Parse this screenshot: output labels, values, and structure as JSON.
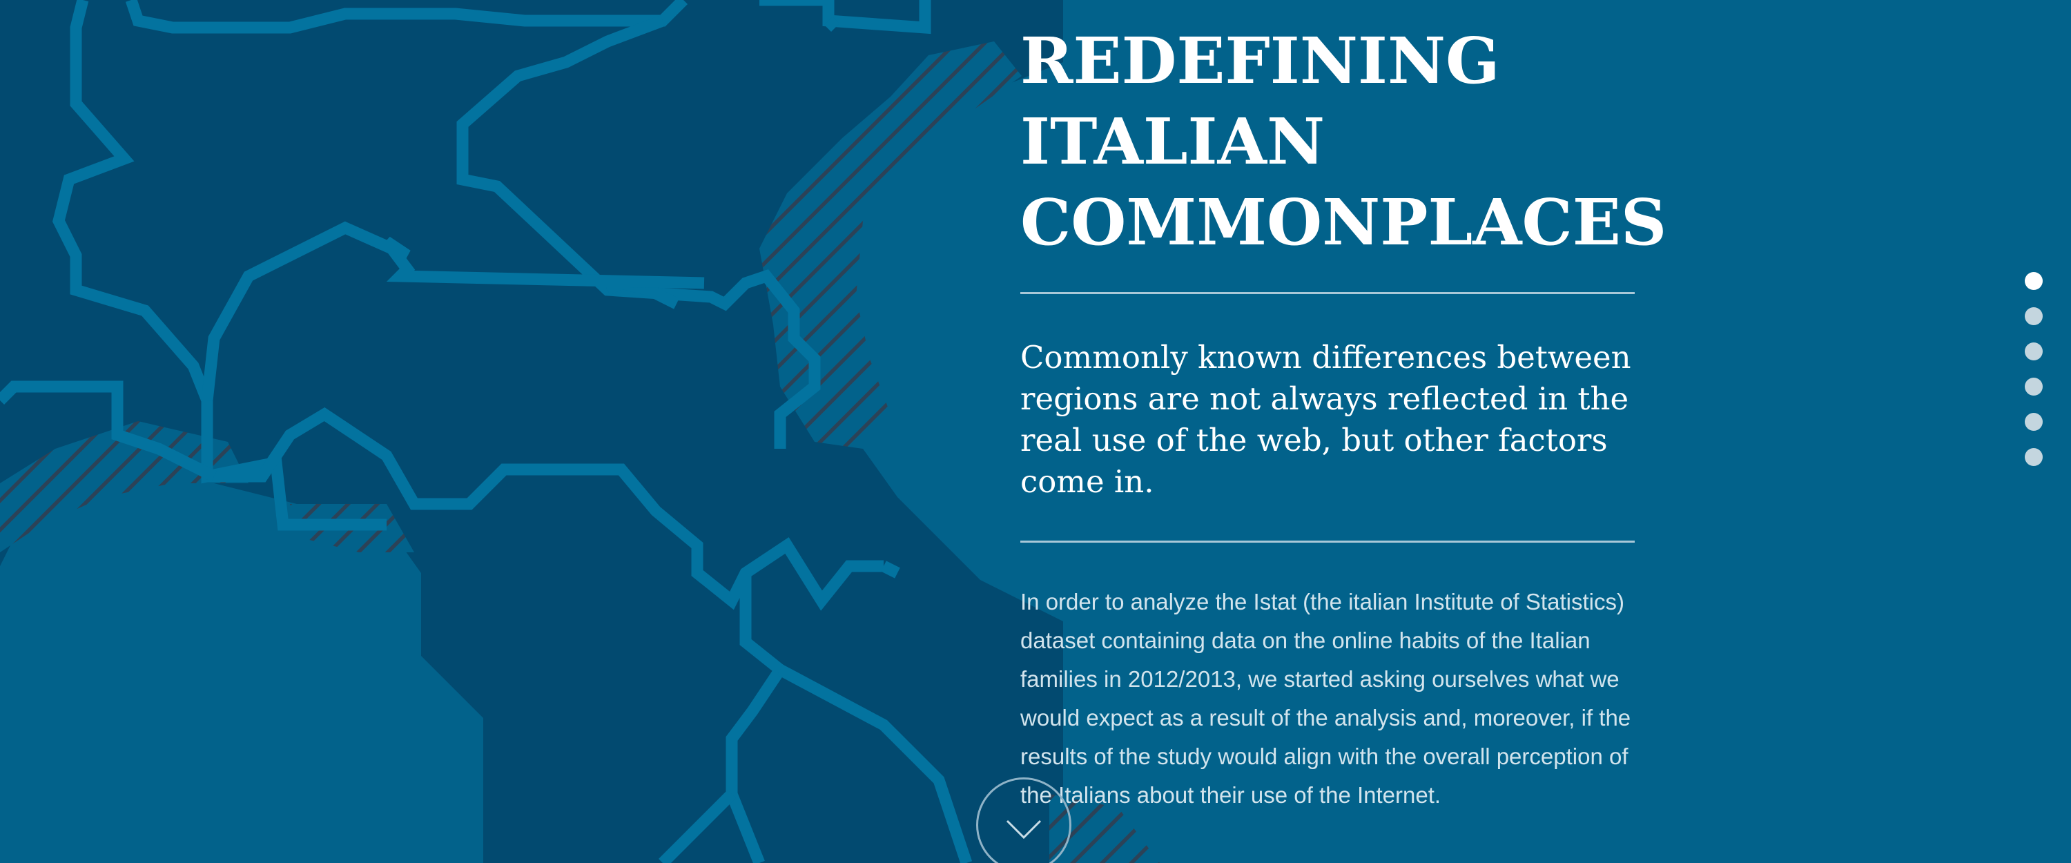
{
  "hero": {
    "title": "REDEFINING\nITALIAN\nCOMMONPLACES",
    "subtitle": "Commonly known differences between regions are not always reflected in the real use of the web, but other factors come in.",
    "body": "In order to analyze the Istat (the italian Institute of Statistics) dataset containing data on the online habits of the Italian families in 2012/2013, we started asking ourselves what we would expect as a result of the analysis and, moreover, if the results of the study would align with the overall perception of the Italians about their use of the Internet."
  },
  "scroll_down": {
    "icon": "chevron-down-icon"
  },
  "pager": {
    "total": 6,
    "active_index": 0
  },
  "colors": {
    "background": "#02628b",
    "map_region": "#024a70",
    "map_border": "#03739f",
    "text": "#ffffff",
    "divider": "#a9c8d8"
  }
}
